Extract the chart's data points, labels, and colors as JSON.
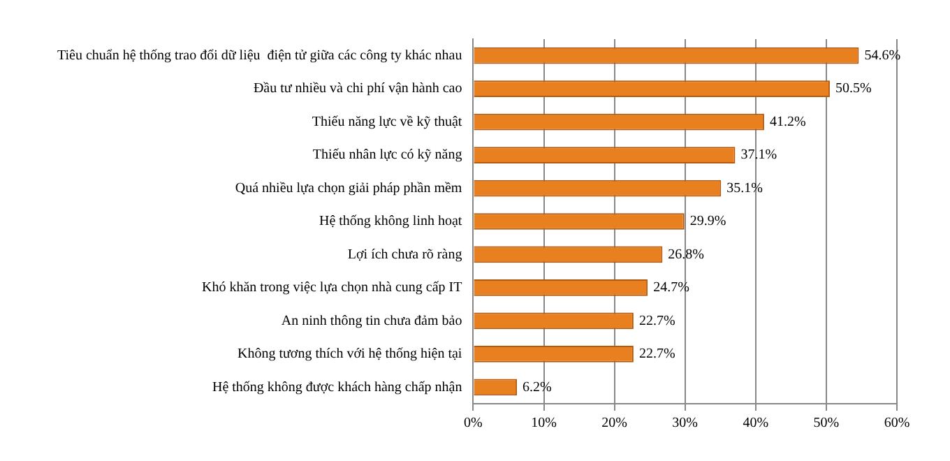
{
  "chart_data": {
    "type": "bar",
    "orientation": "horizontal",
    "categories": [
      "Tiêu chuẩn hệ thống trao đổi dữ liệu  điện tử giữa các công ty khác nhau",
      "Đầu tư nhiều và chi phí vận hành cao",
      "Thiếu năng lực về kỹ thuật",
      "Thiếu nhân lực có kỹ năng",
      "Quá nhiều lựa chọn giải pháp phần mềm",
      "Hệ thống không linh hoạt",
      "Lợi ích chưa rõ ràng",
      "Khó khăn trong việc lựa chọn nhà cung cấp IT",
      "An ninh thông tin chưa đảm bảo",
      "Không tương thích với hệ thống hiện tại",
      "Hệ thống không được khách hàng chấp nhận"
    ],
    "values": [
      54.6,
      50.5,
      41.2,
      37.1,
      35.1,
      29.9,
      26.8,
      24.7,
      22.7,
      22.7,
      6.2
    ],
    "value_labels": [
      "54.6%",
      "50.5%",
      "41.2%",
      "37.1%",
      "35.1%",
      "29.9%",
      "26.8%",
      "24.7%",
      "22.7%",
      "22.7%",
      "6.2%"
    ],
    "color": "#e8801f",
    "xlim": [
      0,
      60
    ],
    "xticks": [
      {
        "value": 0,
        "label": "0%"
      },
      {
        "value": 10,
        "label": "10%"
      },
      {
        "value": 20,
        "label": "20%"
      },
      {
        "value": 30,
        "label": "30%"
      },
      {
        "value": 40,
        "label": "40%"
      },
      {
        "value": 50,
        "label": "50%"
      },
      {
        "value": 60,
        "label": "60%"
      }
    ],
    "grid": "x",
    "legend": false
  }
}
